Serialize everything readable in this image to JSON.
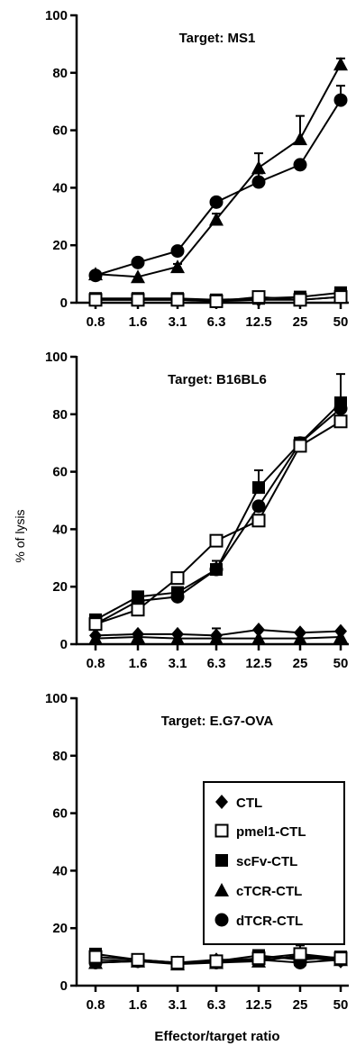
{
  "chart_data": [
    {
      "type": "line",
      "title": "Target: MS1",
      "xlabel": "",
      "ylabel": "",
      "x": [
        "0.8",
        "1.6",
        "3.1",
        "6.3",
        "12.5",
        "25",
        "50"
      ],
      "ylim": [
        0,
        100
      ],
      "yticks": [
        0,
        20,
        40,
        60,
        80,
        100
      ],
      "series": [
        {
          "name": "CTL",
          "values": [
            1,
            1,
            1,
            0.5,
            1,
            1,
            2
          ],
          "errors": [
            0,
            0,
            0,
            0,
            0,
            0,
            0
          ]
        },
        {
          "name": "pmel1-CTL",
          "values": [
            1,
            1,
            1,
            0.5,
            2,
            1,
            2
          ],
          "errors": [
            0,
            0,
            0,
            0,
            0,
            0,
            0
          ]
        },
        {
          "name": "scFv-CTL",
          "values": [
            1.5,
            1.5,
            1.5,
            1,
            1.5,
            2,
            3.5
          ],
          "errors": [
            0,
            0,
            0,
            0,
            0,
            0,
            0
          ]
        },
        {
          "name": "cTCR-CTL",
          "values": [
            10,
            9,
            12.5,
            29,
            47,
            57,
            83
          ],
          "errors": [
            1,
            0,
            1,
            2,
            5,
            8,
            2
          ]
        },
        {
          "name": "dTCR-CTL",
          "values": [
            9.5,
            14,
            18,
            35,
            42,
            48,
            70.5
          ],
          "errors": [
            0,
            0,
            1,
            0,
            3,
            0,
            5
          ]
        }
      ]
    },
    {
      "type": "line",
      "title": "Target: B16BL6",
      "xlabel": "",
      "ylabel": "% of lysis",
      "x": [
        "0.8",
        "1.6",
        "3.1",
        "6.3",
        "12.5",
        "25",
        "50"
      ],
      "ylim": [
        0,
        100
      ],
      "yticks": [
        0,
        20,
        40,
        60,
        80,
        100
      ],
      "series": [
        {
          "name": "CTL",
          "values": [
            3,
            3.5,
            3.5,
            3,
            5,
            4,
            4.5
          ],
          "errors": [
            0,
            0,
            0,
            2.5,
            0,
            0,
            0
          ]
        },
        {
          "name": "pmel1-CTL",
          "values": [
            7,
            12,
            23,
            36,
            43,
            69,
            77.5
          ],
          "errors": [
            0,
            1,
            0,
            0,
            2,
            0,
            3
          ]
        },
        {
          "name": "scFv-CTL",
          "values": [
            8.5,
            16.5,
            18,
            26,
            54.5,
            70,
            84
          ],
          "errors": [
            0,
            0,
            0,
            3,
            6,
            0,
            10
          ]
        },
        {
          "name": "cTCR-CTL",
          "values": [
            2,
            2.5,
            2,
            2,
            2,
            2,
            2.5
          ],
          "errors": [
            0,
            0,
            0,
            0,
            0,
            0,
            0
          ]
        },
        {
          "name": "dTCR-CTL",
          "values": [
            7,
            15,
            16.5,
            26,
            48,
            70,
            82
          ],
          "errors": [
            0,
            0,
            0,
            0,
            0,
            0,
            0
          ]
        }
      ]
    },
    {
      "type": "line",
      "title": "Target: E.G7-OVA",
      "xlabel": "Effector/target ratio",
      "ylabel": "",
      "x": [
        "0.8",
        "1.6",
        "3.1",
        "6.3",
        "12.5",
        "25",
        "50"
      ],
      "ylim": [
        0,
        100
      ],
      "yticks": [
        0,
        20,
        40,
        60,
        80,
        100
      ],
      "series": [
        {
          "name": "CTL",
          "values": [
            9,
            8.5,
            8,
            9,
            9,
            10,
            8.5
          ],
          "errors": [
            0,
            0,
            0,
            0,
            0,
            4,
            0
          ]
        },
        {
          "name": "pmel1-CTL",
          "values": [
            10,
            9,
            8,
            8.5,
            9.5,
            11,
            9.5
          ],
          "errors": [
            0,
            0,
            0,
            0,
            0,
            0,
            0
          ]
        },
        {
          "name": "scFv-CTL",
          "values": [
            11,
            9,
            8,
            8.5,
            10.5,
            9,
            10
          ],
          "errors": [
            0,
            0,
            0,
            0,
            0,
            0,
            0
          ]
        },
        {
          "name": "cTCR-CTL",
          "values": [
            8,
            8.5,
            7.5,
            8,
            8.5,
            10.5,
            9
          ],
          "errors": [
            0,
            0,
            0,
            0,
            0,
            0,
            0
          ]
        },
        {
          "name": "dTCR-CTL",
          "values": [
            8,
            8.5,
            8,
            8,
            9,
            8,
            9
          ],
          "errors": [
            0,
            0,
            0,
            0,
            0,
            0,
            0
          ]
        }
      ]
    }
  ],
  "legend": {
    "items": [
      {
        "label": "CTL",
        "marker": "diamond"
      },
      {
        "label": "pmel1-CTL",
        "marker": "open-square"
      },
      {
        "label": "scFv-CTL",
        "marker": "filled-square"
      },
      {
        "label": "cTCR-CTL",
        "marker": "triangle"
      },
      {
        "label": "dTCR-CTL",
        "marker": "circle"
      }
    ]
  },
  "colors": {
    "ink": "#000000",
    "background": "#ffffff"
  }
}
